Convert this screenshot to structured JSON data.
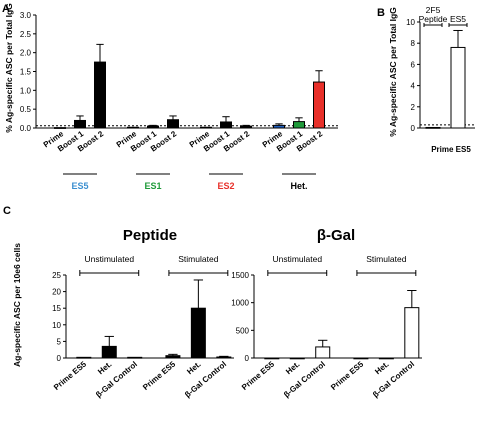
{
  "chart_data": [
    {
      "panel": "A",
      "type": "bar",
      "ylabel": "% Ag-specific ASC per Total IgG",
      "ylim": [
        0,
        3.0
      ],
      "yticks": [
        0,
        0.5,
        1.0,
        1.5,
        2.0,
        2.5,
        3.0
      ],
      "ytick_labels": [
        "0.0",
        "0.5",
        "1.0",
        "1.5",
        "2.0",
        "2.5",
        "3.0"
      ],
      "baseline": 0.06,
      "groups": [
        {
          "label": "ES5",
          "color": "#3b8fd0",
          "categories": [
            "Prime",
            "Boost 1",
            "Boost 2"
          ],
          "values": [
            0.01,
            0.2,
            1.75
          ],
          "errors": [
            0,
            0.12,
            0.47
          ],
          "fills": [
            "#000000",
            "#000000",
            "#000000"
          ]
        },
        {
          "label": "ES1",
          "color": "#1f9a3a",
          "categories": [
            "Prime",
            "Boost 1",
            "Boost 2"
          ],
          "values": [
            0.02,
            0.05,
            0.22
          ],
          "errors": [
            0,
            0.02,
            0.1
          ],
          "fills": [
            "#000000",
            "#000000",
            "#000000"
          ]
        },
        {
          "label": "ES2",
          "color": "#e8302a",
          "categories": [
            "Prime",
            "Boost 1",
            "Boost 2"
          ],
          "values": [
            0.02,
            0.16,
            0.05
          ],
          "errors": [
            0,
            0.14,
            0.02
          ],
          "fills": [
            "#000000",
            "#000000",
            "#000000"
          ]
        },
        {
          "label": "Het.",
          "color": "#000000",
          "categories": [
            "Prime",
            "Boost 1",
            "Boost 2"
          ],
          "values": [
            0.07,
            0.17,
            1.22
          ],
          "errors": [
            0.04,
            0.1,
            0.3
          ],
          "fills": [
            "#1f5fbf",
            "#1f9a3a",
            "#e8302a"
          ]
        }
      ]
    },
    {
      "panel": "B",
      "type": "bar",
      "ylabel": "% Ag-specific ASC per Total IgG",
      "ylim": [
        0,
        10
      ],
      "yticks": [
        0,
        2,
        4,
        6,
        8,
        10
      ],
      "ytick_labels": [
        "0",
        "2",
        "4",
        "6",
        "8",
        "10"
      ],
      "baseline": 0.3,
      "xlabel": "Prime ES5",
      "bracket_labels": [
        "2F5\nPeptide",
        "ES5"
      ],
      "values": [
        0.05,
        7.6
      ],
      "errors": [
        0,
        1.6
      ]
    },
    {
      "panel": "C",
      "title": "Peptide",
      "type": "bar",
      "ylabel": "Ag-specific ASC per 10e6 cells",
      "ylim": [
        0,
        25
      ],
      "yticks": [
        0,
        5,
        10,
        15,
        20,
        25
      ],
      "ytick_labels": [
        "0",
        "5",
        "10",
        "15",
        "20",
        "25"
      ],
      "conditions": [
        "Unstimulated",
        "Stimulated"
      ],
      "categories": [
        "Prime ES5",
        "Het.",
        "β-Gal Control",
        "Prime ES5",
        "Het.",
        "β-Gal Control"
      ],
      "values": [
        0.2,
        3.5,
        0.2,
        0.7,
        15,
        0.3
      ],
      "errors": [
        0,
        3.0,
        0,
        0.4,
        8.5,
        0.2
      ],
      "fill": "#000000"
    },
    {
      "panel": "C2",
      "title": "β-Gal",
      "type": "bar",
      "ylim": [
        0,
        1500
      ],
      "yticks": [
        0,
        500,
        1000,
        1500
      ],
      "ytick_labels": [
        "0",
        "500",
        "1000",
        "1500"
      ],
      "conditions": [
        "Unstimulated",
        "Stimulated"
      ],
      "categories": [
        "Prime ES5",
        "Het.",
        "β-Gal Control",
        "Prime ES5",
        "Het.",
        "β-Gal Control"
      ],
      "values": [
        0,
        0,
        200,
        0,
        0,
        910
      ],
      "errors": [
        0,
        0,
        120,
        0,
        0,
        310
      ],
      "fill": "#ffffff"
    }
  ]
}
